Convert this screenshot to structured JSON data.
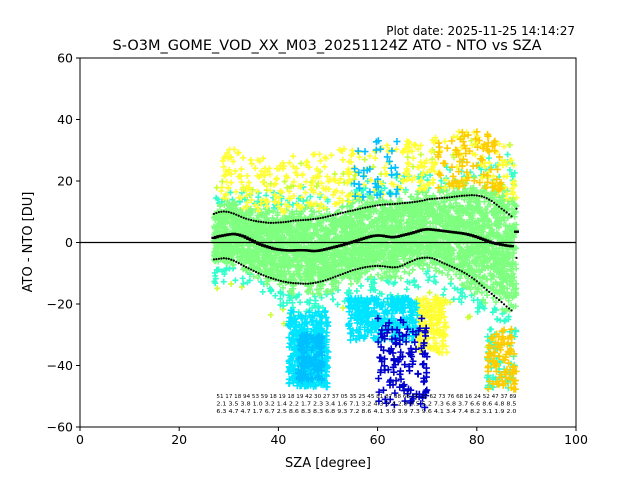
{
  "plot_date": "Plot date: 2025-11-25 14:14:27",
  "chart_data": {
    "type": "scatter",
    "title": "S-O3M_GOME_VOD_XX_M03_20251124Z ATO - NTO vs SZA",
    "xlabel": "SZA [degree]",
    "ylabel": "ATO - NTO [DU]",
    "xlim": [
      0,
      100
    ],
    "ylim": [
      -60,
      60
    ],
    "x_ticks": [
      0,
      20,
      40,
      60,
      80,
      100
    ],
    "y_ticks": [
      -60,
      -40,
      -20,
      0,
      20,
      40,
      60
    ],
    "x_tick_labels": [
      "0",
      "20",
      "40",
      "60",
      "80",
      "100"
    ],
    "y_tick_labels": [
      "−60",
      "−40",
      "−20",
      "0",
      "20",
      "40",
      "60"
    ],
    "zero_line": 0,
    "grid": false,
    "legend": "none",
    "colors": {
      "main_cloud": "#7fff7f",
      "cyan": "#00e5ff",
      "sky": "#00bfff",
      "yellow": "#ffff33",
      "gold": "#ffcc00",
      "orange": "#ffaa00",
      "blue": "#0000cc",
      "teal": "#33ffcc",
      "lime": "#ccff33"
    },
    "sza_bins": [
      27,
      28,
      29,
      30,
      31,
      32,
      33,
      34,
      35,
      36,
      37,
      38,
      39,
      40,
      41,
      42,
      43,
      44,
      45,
      46,
      47,
      48,
      49,
      50,
      51,
      52,
      53,
      54,
      55,
      56,
      57,
      58,
      59,
      60,
      61,
      62,
      63,
      64,
      65,
      66,
      67,
      68,
      69,
      70,
      71,
      72,
      73,
      74,
      75,
      76,
      77,
      78,
      79,
      80,
      81,
      82,
      83,
      84,
      85,
      86,
      87,
      88
    ],
    "mean": [
      1.5,
      2,
      2.3,
      2.6,
      2.8,
      2.5,
      2,
      1.2,
      0.4,
      -0.4,
      -1,
      -1.5,
      -2,
      -2.3,
      -2.5,
      -2.6,
      -2.6,
      -2.5,
      -2.5,
      -2.6,
      -2.8,
      -2.7,
      -2.4,
      -2,
      -1.6,
      -1.2,
      -0.8,
      -0.3,
      0.2,
      0.7,
      1.2,
      1.7,
      2.1,
      2.3,
      2.2,
      1.9,
      1.7,
      1.9,
      2.3,
      2.7,
      3.1,
      3.6,
      4.1,
      4.3,
      4.2,
      4,
      3.8,
      3.6,
      3.4,
      3.2,
      3,
      2.7,
      2.3,
      1.8,
      1.2,
      0.6,
      0,
      -0.4,
      -0.7,
      -1,
      -1.2,
      3.5
    ],
    "upper": [
      9.3,
      9.9,
      10.1,
      9.9,
      9.4,
      8.7,
      8,
      7.5,
      7.1,
      6.8,
      6.6,
      6.4,
      6.4,
      6.5,
      6.6,
      6.8,
      7.1,
      7.2,
      7.3,
      7.4,
      7.6,
      7.8,
      8.1,
      8.5,
      8.9,
      9.3,
      9.7,
      10.1,
      10.4,
      10.8,
      11.2,
      11.5,
      11.8,
      12.1,
      12.3,
      12.4,
      12.5,
      12.6,
      12.8,
      12.9,
      13.1,
      13.3,
      13.6,
      14,
      14.2,
      14.3,
      14.5,
      14.6,
      14.8,
      15,
      15.2,
      15.3,
      15.4,
      15.3,
      15,
      14.4,
      13.5,
      12.3,
      11,
      9.8,
      8.5,
      11
    ],
    "lower": [
      -5.5,
      -5.3,
      -5.1,
      -5.3,
      -5.9,
      -6.7,
      -7.6,
      -8.4,
      -9.2,
      -10,
      -10.7,
      -11.3,
      -11.8,
      -12.3,
      -12.7,
      -13,
      -13.2,
      -13.3,
      -13.4,
      -13.4,
      -13.2,
      -12.9,
      -12.5,
      -12,
      -11.4,
      -10.8,
      -10.2,
      -9.6,
      -9,
      -8.6,
      -8.2,
      -7.9,
      -7.7,
      -7.6,
      -7.7,
      -7.9,
      -8.1,
      -8,
      -7.5,
      -6.7,
      -6,
      -5.3,
      -5,
      -4.9,
      -5.1,
      -5.7,
      -6.5,
      -7.2,
      -7.9,
      -8.6,
      -9.4,
      -10.3,
      -11.4,
      -12.6,
      -14,
      -15.4,
      -16.7,
      -18,
      -19.4,
      -20.8,
      -22.1,
      -5
    ],
    "counts_label_rows": [
      "51 17 18 94 53 59 18 19 18 19 42 30 27 37 05 35 25 45 81 87 38 68 55 12 62 73 76 68 16 24 52 47 37 89",
      "2.1 3.5 3.8 1.0 3.2 1.4 2.2 1.7 2.3 3.4 1.6 7.1 3.2 4.3 3.4 2.8 6.5 5.2 7.3 6.8 3.7 6.6 8.6 4.8 8.5",
      "6.3 4.7 4.7 1.7 6.7 2.5 8.6 8.3 8.3 6.8 9.3 7.2 8.6 4.1 3.9 3.9 7.3 9.6 4.1 3.4 7.4 8.2 3.1 1.9 2.0"
    ]
  }
}
